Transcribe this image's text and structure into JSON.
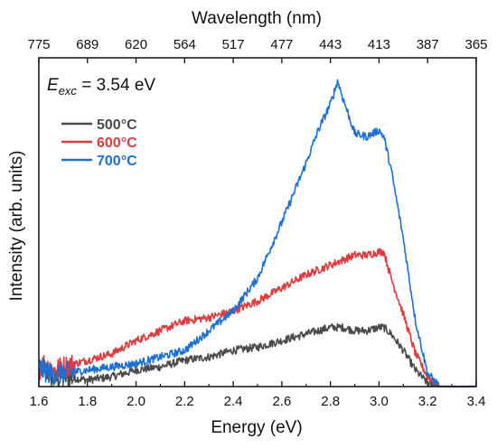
{
  "chart_data": {
    "type": "line",
    "xlabel": "Energy (eV)",
    "ylabel": "Intensity (arb. units)",
    "top_xlabel": "Wavelength (nm)",
    "xlim": [
      1.6,
      3.4
    ],
    "x_ticks": [
      "1.6",
      "1.8",
      "2.0",
      "2.2",
      "2.4",
      "2.6",
      "2.8",
      "3.0",
      "3.2",
      "3.4"
    ],
    "top_ticks": [
      {
        "energy": 1.6,
        "label": "775"
      },
      {
        "energy": 1.8,
        "label": "689"
      },
      {
        "energy": 2.0,
        "label": "620"
      },
      {
        "energy": 2.2,
        "label": "564"
      },
      {
        "energy": 2.4,
        "label": "517"
      },
      {
        "energy": 2.6,
        "label": "477"
      },
      {
        "energy": 2.8,
        "label": "443"
      },
      {
        "energy": 3.0,
        "label": "413"
      },
      {
        "energy": 3.2,
        "label": "387"
      },
      {
        "energy": 3.4,
        "label": "365"
      }
    ],
    "ylim": [
      0,
      1.0
    ],
    "y_ticks_labeled": false,
    "grid": false,
    "legend_position": "top-left",
    "annotation": {
      "symbol": "E",
      "subscript": "exc",
      "text": " = 3.54 eV"
    },
    "series": [
      {
        "name": "500°C",
        "color": "#4a4a4a",
        "points": [
          [
            1.6,
            0.03
          ],
          [
            1.62,
            0.06
          ],
          [
            1.64,
            0.04
          ],
          [
            1.66,
            0.02
          ],
          [
            1.7,
            0.03
          ],
          [
            1.8,
            0.02
          ],
          [
            1.9,
            0.03
          ],
          [
            2.0,
            0.05
          ],
          [
            2.1,
            0.06
          ],
          [
            2.2,
            0.08
          ],
          [
            2.3,
            0.09
          ],
          [
            2.4,
            0.11
          ],
          [
            2.5,
            0.12
          ],
          [
            2.6,
            0.14
          ],
          [
            2.7,
            0.16
          ],
          [
            2.8,
            0.18
          ],
          [
            2.85,
            0.18
          ],
          [
            2.9,
            0.17
          ],
          [
            2.95,
            0.17
          ],
          [
            3.0,
            0.18
          ],
          [
            3.02,
            0.18
          ],
          [
            3.05,
            0.16
          ],
          [
            3.1,
            0.11
          ],
          [
            3.15,
            0.05
          ],
          [
            3.2,
            0.01
          ],
          [
            3.25,
            0.0
          ],
          [
            3.3,
            0.0
          ],
          [
            3.4,
            0.0
          ]
        ]
      },
      {
        "name": "600°C",
        "color": "#e03a3e",
        "points": [
          [
            1.6,
            0.05
          ],
          [
            1.62,
            0.07
          ],
          [
            1.66,
            0.05
          ],
          [
            1.7,
            0.06
          ],
          [
            1.8,
            0.08
          ],
          [
            1.9,
            0.1
          ],
          [
            2.0,
            0.14
          ],
          [
            2.1,
            0.17
          ],
          [
            2.2,
            0.2
          ],
          [
            2.3,
            0.21
          ],
          [
            2.4,
            0.23
          ],
          [
            2.5,
            0.26
          ],
          [
            2.6,
            0.3
          ],
          [
            2.7,
            0.34
          ],
          [
            2.8,
            0.37
          ],
          [
            2.9,
            0.4
          ],
          [
            2.95,
            0.4
          ],
          [
            3.0,
            0.41
          ],
          [
            3.02,
            0.41
          ],
          [
            3.05,
            0.33
          ],
          [
            3.1,
            0.22
          ],
          [
            3.15,
            0.1
          ],
          [
            3.2,
            0.03
          ],
          [
            3.25,
            0.0
          ],
          [
            3.3,
            0.0
          ],
          [
            3.4,
            0.0
          ]
        ]
      },
      {
        "name": "700°C",
        "color": "#1a6fd8",
        "points": [
          [
            1.6,
            0.06
          ],
          [
            1.62,
            0.05
          ],
          [
            1.65,
            0.04
          ],
          [
            1.7,
            0.04
          ],
          [
            1.8,
            0.05
          ],
          [
            1.9,
            0.06
          ],
          [
            2.0,
            0.07
          ],
          [
            2.1,
            0.09
          ],
          [
            2.2,
            0.11
          ],
          [
            2.3,
            0.17
          ],
          [
            2.4,
            0.23
          ],
          [
            2.5,
            0.33
          ],
          [
            2.6,
            0.5
          ],
          [
            2.7,
            0.68
          ],
          [
            2.75,
            0.78
          ],
          [
            2.8,
            0.86
          ],
          [
            2.83,
            0.93
          ],
          [
            2.85,
            0.88
          ],
          [
            2.9,
            0.77
          ],
          [
            2.95,
            0.76
          ],
          [
            3.0,
            0.78
          ],
          [
            3.02,
            0.76
          ],
          [
            3.05,
            0.66
          ],
          [
            3.1,
            0.45
          ],
          [
            3.15,
            0.2
          ],
          [
            3.2,
            0.04
          ],
          [
            3.25,
            0.0
          ],
          [
            3.3,
            0.0
          ],
          [
            3.4,
            0.0
          ]
        ]
      }
    ]
  }
}
